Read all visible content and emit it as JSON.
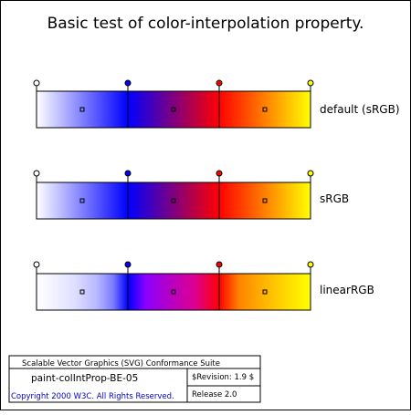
{
  "title": "Basic test of color-interpolation property.",
  "stop_colors": [
    "#ffffff",
    "#0000ff",
    "#ff0000",
    "#ffff00"
  ],
  "rows": [
    {
      "label": "default (sRGB)",
      "interpolation": "sRGB"
    },
    {
      "label": "sRGB",
      "interpolation": "sRGB"
    },
    {
      "label": "linearRGB",
      "interpolation": "linearRGB"
    }
  ],
  "footer": {
    "suite": "Scalable Vector Graphics (SVG) Conformance Suite",
    "test_name": "paint-colIntProp-BE-05",
    "revision": "$Revision: 1.9 $",
    "copyright": "Copyright 2000 W3C. All Rights Reserved.",
    "release": "Release 2.0",
    "copyright_color": "#0000cc"
  }
}
